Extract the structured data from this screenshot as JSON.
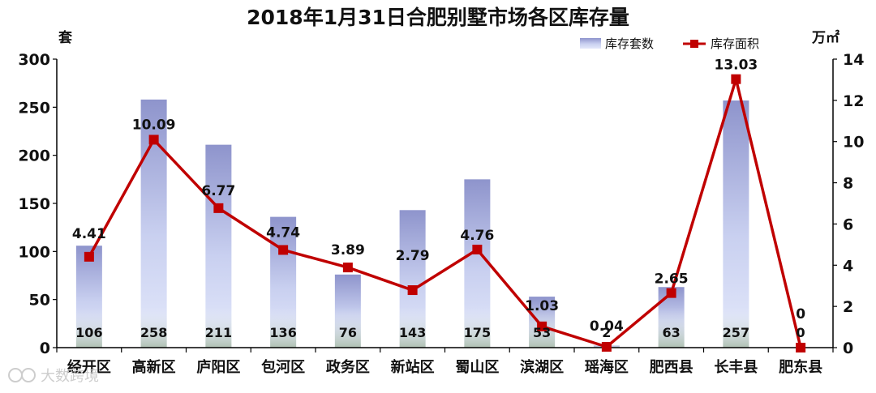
{
  "chart_data": {
    "type": "bar",
    "title": "2018年1月31日合肥别墅市场各区库存量",
    "categories": [
      "经开区",
      "高新区",
      "庐阳区",
      "包河区",
      "政务区",
      "新站区",
      "蜀山区",
      "滨湖区",
      "瑶海区",
      "肥西县",
      "长丰县",
      "肥东县"
    ],
    "left_axis": {
      "unit": "套",
      "min": 0,
      "max": 300,
      "step": 50
    },
    "right_axis": {
      "unit": "万㎡",
      "min": 0,
      "max": 14,
      "step": 2
    },
    "series": [
      {
        "name": "库存套数",
        "type": "bar",
        "axis": "left",
        "values": [
          106,
          258,
          211,
          136,
          76,
          143,
          175,
          53,
          2,
          63,
          257,
          0
        ],
        "labels": [
          "106",
          "258",
          "211",
          "136",
          "76",
          "143",
          "175",
          "53",
          "2",
          "63",
          "257",
          "0"
        ]
      },
      {
        "name": "库存面积",
        "type": "line",
        "axis": "right",
        "values": [
          4.41,
          10.09,
          6.77,
          4.74,
          3.89,
          2.79,
          4.76,
          1.03,
          0.04,
          2.65,
          13.03,
          0
        ],
        "labels": [
          "4.41",
          "10.09",
          "6.77",
          "4.74",
          "3.89",
          "2.79",
          "4.76",
          "1.03",
          "0.04",
          "2.65",
          "13.03",
          "0"
        ]
      }
    ],
    "legend_position": "top-right",
    "grid": false,
    "colors": {
      "bar_top": "#8e94cc",
      "bar_mid": "#c9d0f0",
      "bar_bottom": "#e4e9fb",
      "bar_base": "#9db39a",
      "line": "#c00000",
      "axis": "#000000"
    }
  },
  "watermark": {
    "icon": "logo-icon",
    "text": "大数跨境"
  }
}
